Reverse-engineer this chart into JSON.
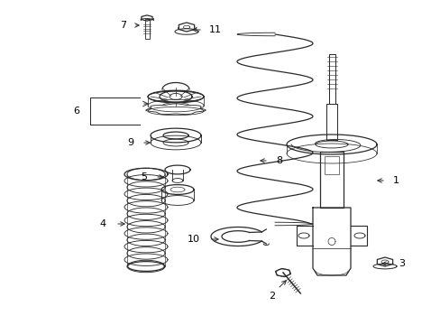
{
  "background_color": "#ffffff",
  "line_color": "#2a2a2a",
  "fig_width": 4.89,
  "fig_height": 3.6,
  "dpi": 100,
  "label_fontsize": 8.0,
  "lw": 0.9
}
